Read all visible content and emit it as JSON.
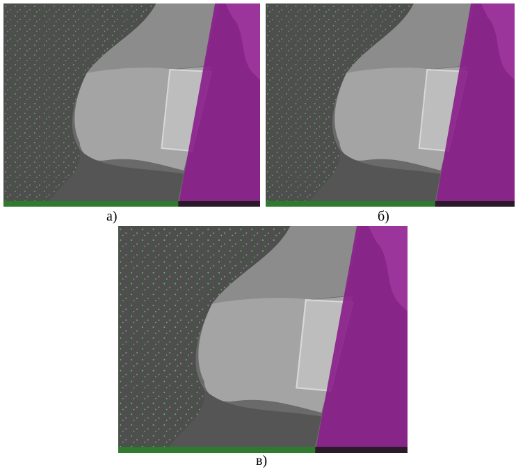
{
  "captions": [
    "а)",
    "б)",
    "в)"
  ]
}
